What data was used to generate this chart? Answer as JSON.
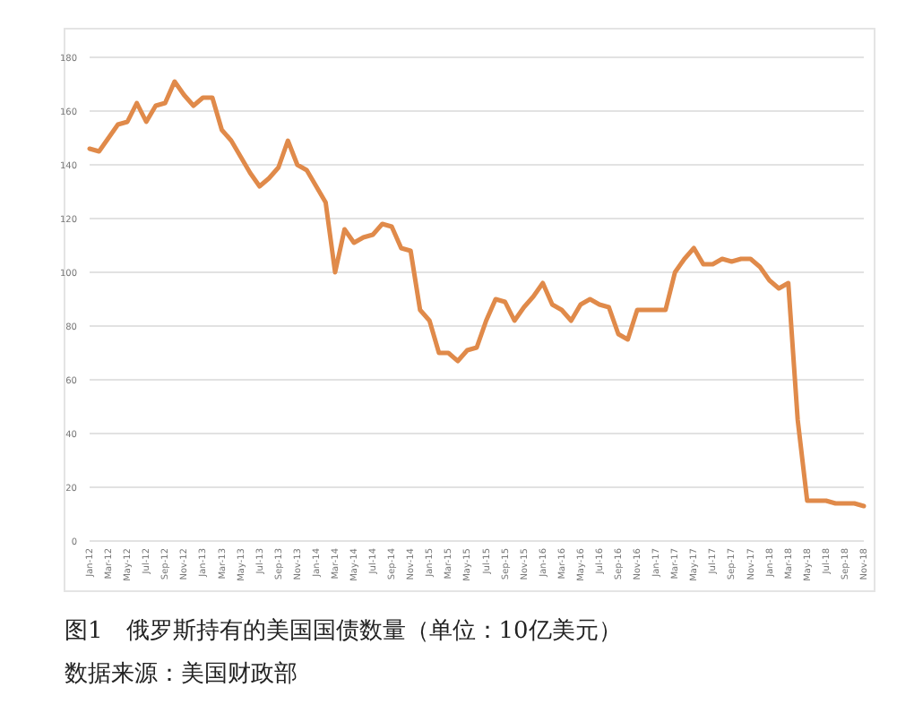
{
  "chart_data": {
    "type": "line",
    "title": "图1　俄罗斯持有的美国国债数量（单位：10亿美元）",
    "annotations": [
      "数据来源：美国财政部"
    ],
    "categories": [
      "Jan-12",
      null,
      "Mar-12",
      null,
      "May-12",
      null,
      "Jul-12",
      null,
      "Sep-12",
      null,
      "Nov-12",
      null,
      "Jan-13",
      null,
      "Mar-13",
      null,
      "May-13",
      null,
      "Jul-13",
      null,
      "Sep-13",
      null,
      "Nov-13",
      null,
      "Jan-14",
      null,
      "Mar-14",
      null,
      "May-14",
      null,
      "Jul-14",
      null,
      "Sep-14",
      null,
      "Nov-14",
      null,
      "Jan-15",
      null,
      "Mar-15",
      null,
      "May-15",
      null,
      "Jul-15",
      null,
      "Sep-15",
      null,
      "Nov-15",
      null,
      "Jan-16",
      null,
      "Mar-16",
      null,
      "May-16",
      null,
      "Jul-16",
      null,
      "Sep-16",
      null,
      "Nov-16",
      null,
      "Jan-17",
      null,
      "Mar-17",
      null,
      "May-17",
      null,
      "Jul-17",
      null,
      "Sep-17",
      null,
      "Nov-17",
      null,
      "Jan-18",
      null,
      "Mar-18",
      null,
      "May-18",
      null,
      "Jul-18",
      null,
      "Sep-18",
      null,
      "Nov-18"
    ],
    "series": [
      {
        "color": "#e08a4a",
        "values": [
          146,
          145,
          150,
          155,
          156,
          163,
          156,
          162,
          163,
          171,
          166,
          162,
          165,
          165,
          153,
          149,
          143,
          137,
          132,
          135,
          139,
          149,
          140,
          138,
          132,
          126,
          100,
          116,
          111,
          113,
          114,
          118,
          117,
          109,
          108,
          86,
          82,
          70,
          70,
          67,
          71,
          72,
          82,
          90,
          89,
          82,
          87,
          91,
          96,
          88,
          86,
          82,
          88,
          90,
          88,
          87,
          77,
          75,
          86,
          86,
          86,
          86,
          100,
          105,
          109,
          103,
          103,
          105,
          104,
          105,
          105,
          102,
          97,
          94,
          96,
          45,
          15,
          15,
          15,
          14,
          14,
          14,
          13
        ]
      }
    ],
    "ylim": [
      0,
      180
    ],
    "yticks": [
      0,
      20,
      40,
      60,
      80,
      100,
      120,
      140,
      160,
      180
    ],
    "grid": "y"
  }
}
